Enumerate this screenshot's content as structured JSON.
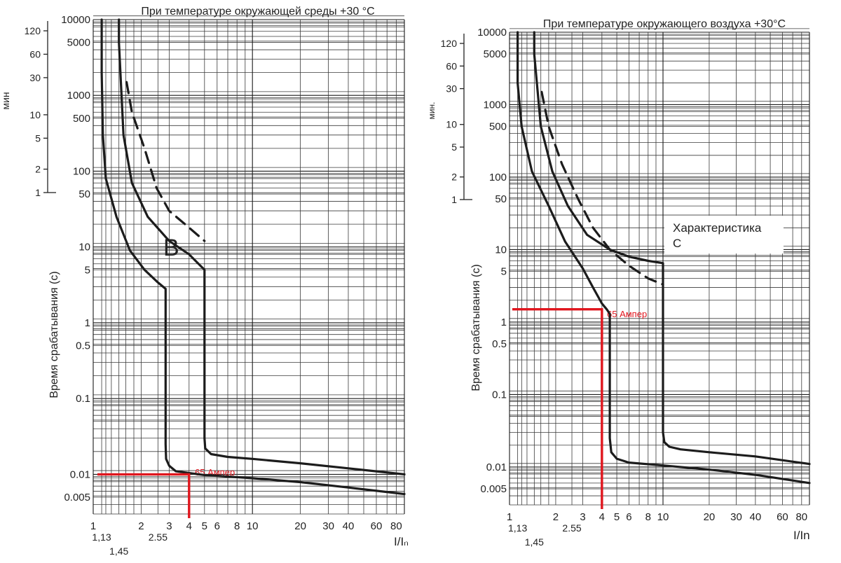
{
  "chart_data": [
    {
      "type": "line",
      "title": "При температуре окружающей среды +30 °C",
      "xlabel": "I/Iₙ",
      "ylabel": "Время срабатывания (с)",
      "y2label": "мин",
      "x_scale": "log",
      "y_scale": "log",
      "xlim": [
        1,
        90
      ],
      "ylim": [
        0.003,
        10000
      ],
      "grid": true,
      "x_ticks": [
        "1",
        "2",
        "3",
        "4",
        "5",
        "6",
        "8",
        "10",
        "20",
        "30",
        "40",
        "60",
        "80"
      ],
      "x_ticks_lower": [
        "1,13",
        "1,45",
        "2.55"
      ],
      "y_ticks": [
        "10000",
        "5000",
        "1000",
        "500",
        "100",
        "50",
        "10",
        "5",
        "1",
        "0.5",
        "0.1",
        "0.01",
        "0.005"
      ],
      "y2_ticks": [
        "120",
        "60",
        "30",
        "10",
        "5",
        "2",
        "1"
      ],
      "annotation": "B",
      "series": [
        {
          "style": "solid",
          "x": [
            1.13,
            1.13,
            1.15,
            1.2,
            1.4,
            1.7,
            2.1,
            2.55,
            2.85,
            2.85,
            2.87,
            3.0,
            3.3,
            5,
            10,
            20,
            40,
            90
          ],
          "y": [
            10000,
            2000,
            300,
            80,
            25,
            9,
            5,
            3.4,
            2.8,
            0.025,
            0.016,
            0.013,
            0.011,
            0.0098,
            0.0089,
            0.0079,
            0.0067,
            0.0055
          ]
        },
        {
          "style": "solid",
          "x": [
            1.45,
            1.45,
            1.55,
            1.75,
            2.2,
            3,
            4,
            5,
            5,
            5.05,
            5.5,
            7,
            10,
            20,
            40,
            90
          ],
          "y": [
            10000,
            5000,
            300,
            70,
            25,
            12,
            8,
            5,
            0.03,
            0.022,
            0.0185,
            0.017,
            0.016,
            0.014,
            0.012,
            0.01
          ]
        },
        {
          "style": "dashed",
          "x": [
            1.62,
            1.75,
            2.1,
            2.5,
            3,
            4,
            5
          ],
          "y": [
            1500,
            600,
            200,
            60,
            30,
            18,
            12
          ]
        }
      ],
      "marker": {
        "label": "65 Ампер",
        "x": 4,
        "y": 0.01
      }
    },
    {
      "type": "line",
      "title": "При температуре окружающего воздуха +30°C",
      "xlabel": "I/In",
      "ylabel": "Время срабатывания (с)",
      "y2label": "мин.",
      "x_scale": "log",
      "y_scale": "log",
      "xlim": [
        1,
        90
      ],
      "ylim": [
        0.003,
        10000
      ],
      "grid": true,
      "x_ticks": [
        "1",
        "2",
        "3",
        "4",
        "5",
        "6",
        "8",
        "10",
        "20",
        "30",
        "40",
        "60",
        "80"
      ],
      "x_ticks_lower": [
        "1,13",
        "1,45",
        "2.55"
      ],
      "y_ticks": [
        "10000",
        "5000",
        "1000",
        "500",
        "100",
        "50",
        "10",
        "5",
        "1",
        "0.5",
        "0.1",
        "0.01",
        "0.005"
      ],
      "y2_ticks": [
        "120",
        "60",
        "30",
        "10",
        "5",
        "2",
        "1"
      ],
      "annotation": "Характеристика С",
      "series": [
        {
          "style": "solid",
          "x": [
            1.13,
            1.13,
            1.2,
            1.4,
            1.8,
            2.3,
            3,
            3.5,
            4,
            4.3,
            4.5,
            4.5,
            4.6,
            5,
            6,
            10,
            20,
            40,
            90
          ],
          "y": [
            10000,
            2000,
            500,
            120,
            40,
            13,
            5.5,
            3,
            1.8,
            1.5,
            1.3,
            0.025,
            0.016,
            0.013,
            0.0115,
            0.0105,
            0.0092,
            0.0078,
            0.006
          ]
        },
        {
          "style": "solid",
          "x": [
            1.45,
            1.45,
            1.6,
            1.9,
            2.4,
            3.2,
            4.5,
            6,
            8,
            10,
            10,
            10.2,
            11,
            13,
            20,
            40,
            90
          ],
          "y": [
            10000,
            5000,
            500,
            120,
            40,
            16,
            10,
            8,
            7,
            6.5,
            0.03,
            0.022,
            0.019,
            0.0175,
            0.016,
            0.014,
            0.011
          ]
        },
        {
          "style": "dashed",
          "x": [
            1.62,
            1.8,
            2.2,
            2.8,
            3.5,
            4.5,
            6,
            8,
            10
          ],
          "y": [
            1500,
            500,
            150,
            50,
            20,
            10,
            6,
            4,
            3.3
          ]
        }
      ],
      "marker": {
        "label": "65 Ампер",
        "x": 4,
        "y": 1.5
      }
    }
  ]
}
